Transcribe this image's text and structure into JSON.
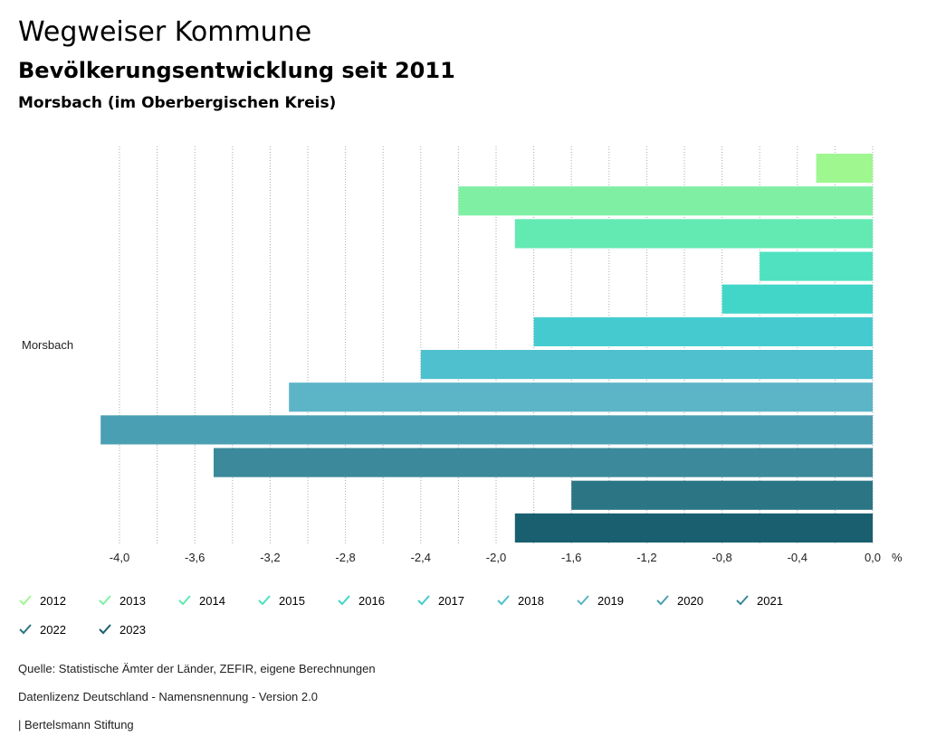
{
  "header": {
    "title": "Wegweiser Kommune",
    "subtitle": "Bevölkerungsentwicklung seit 2011",
    "region": "Morsbach (im Oberbergischen Kreis)"
  },
  "chart_data": {
    "type": "bar",
    "orientation": "horizontal",
    "category": "Morsbach",
    "x_unit": "%",
    "xlim": [
      -4.0,
      0.0
    ],
    "x_ticks": [
      "-4,0",
      "-3,6",
      "-3,2",
      "-2,8",
      "-2,4",
      "-2,0",
      "-1,6",
      "-1,2",
      "-0,8",
      "-0,4",
      "0,0"
    ],
    "grid": true,
    "series": [
      {
        "name": "2012",
        "value": -0.3,
        "color": "#9ef78f"
      },
      {
        "name": "2013",
        "value": -2.2,
        "color": "#7ff0a3"
      },
      {
        "name": "2014",
        "value": -1.9,
        "color": "#63e9b2"
      },
      {
        "name": "2015",
        "value": -0.6,
        "color": "#4fe1c0"
      },
      {
        "name": "2016",
        "value": -0.8,
        "color": "#42d6c8"
      },
      {
        "name": "2017",
        "value": -1.8,
        "color": "#45cbcf"
      },
      {
        "name": "2018",
        "value": -2.4,
        "color": "#4fc0cd"
      },
      {
        "name": "2019",
        "value": -3.1,
        "color": "#5cb4c7"
      },
      {
        "name": "2020",
        "value": -4.1,
        "color": "#4b9fb3"
      },
      {
        "name": "2021",
        "value": -3.5,
        "color": "#3b899b"
      },
      {
        "name": "2022",
        "value": -1.6,
        "color": "#2b7585"
      },
      {
        "name": "2023",
        "value": -1.9,
        "color": "#195f6f"
      }
    ]
  },
  "footer": {
    "source": "Quelle: Statistische Ämter der Länder, ZEFIR, eigene Berechnungen",
    "license": "Datenlizenz Deutschland - Namensnennung - Version 2.0",
    "publisher": "| Bertelsmann Stiftung"
  }
}
